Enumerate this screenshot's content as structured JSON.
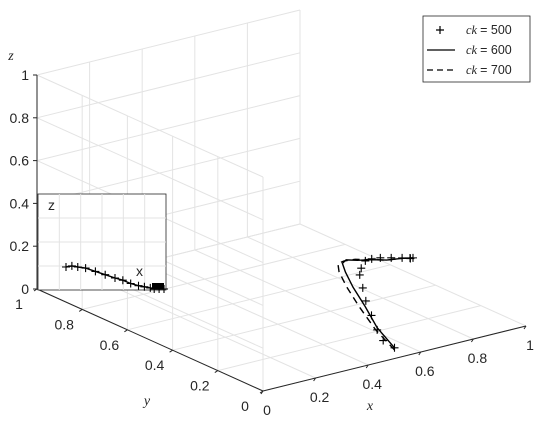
{
  "chart_data": {
    "type": "line",
    "projection": "3d",
    "xlabel": "x",
    "ylabel": "y",
    "zlabel": "z",
    "xlim": [
      0,
      1
    ],
    "ylim": [
      0,
      1
    ],
    "zlim": [
      0,
      1
    ],
    "x_ticks": [
      "0",
      "0.2",
      "0.4",
      "0.6",
      "0.8",
      "1"
    ],
    "y_ticks": [
      "0",
      "0.2",
      "0.4",
      "0.6",
      "0.8",
      "1"
    ],
    "z_ticks": [
      "0",
      "0.2",
      "0.4",
      "0.6",
      "0.8",
      "1"
    ],
    "grid": true,
    "legend_position": "top-right",
    "series": [
      {
        "name": "ck = 500",
        "name_symbol": "ck",
        "name_value": "= 500",
        "style": "plus-markers",
        "x": [
          0.5,
          0.5,
          0.52,
          0.55,
          0.58,
          0.62,
          0.66,
          0.7,
          0.75,
          0.8,
          0.85,
          0.9,
          0.95,
          0.98,
          0.99,
          1.0
        ],
        "y": [
          0.0,
          0.05,
          0.1,
          0.16,
          0.22,
          0.28,
          0.34,
          0.38,
          0.42,
          0.45,
          0.47,
          0.48,
          0.49,
          0.49,
          0.5,
          0.5
        ],
        "z": [
          0.05,
          0.06,
          0.08,
          0.11,
          0.14,
          0.16,
          0.18,
          0.18,
          0.18,
          0.16,
          0.14,
          0.12,
          0.1,
          0.09,
          0.08,
          0.08
        ]
      },
      {
        "name": "ck = 600",
        "name_symbol": "ck",
        "name_value": "= 600",
        "style": "solid",
        "x": [
          0.5,
          0.52,
          0.56,
          0.6,
          0.64,
          0.68,
          0.72,
          0.78,
          0.84,
          0.9,
          0.96,
          1.0
        ],
        "y": [
          0.0,
          0.1,
          0.2,
          0.3,
          0.38,
          0.44,
          0.47,
          0.49,
          0.5,
          0.5,
          0.5,
          0.5
        ],
        "z": [
          0.05,
          0.09,
          0.13,
          0.16,
          0.18,
          0.18,
          0.17,
          0.14,
          0.12,
          0.1,
          0.09,
          0.08
        ]
      },
      {
        "name": "ck = 700",
        "name_symbol": "ck",
        "name_value": "= 700",
        "style": "dashed",
        "x": [
          0.5,
          0.53,
          0.57,
          0.61,
          0.65,
          0.68,
          0.72,
          0.78,
          0.84,
          0.9,
          0.96,
          1.0
        ],
        "y": [
          0.0,
          0.12,
          0.24,
          0.34,
          0.42,
          0.46,
          0.48,
          0.5,
          0.5,
          0.5,
          0.5,
          0.5
        ],
        "z": [
          0.04,
          0.07,
          0.11,
          0.14,
          0.16,
          0.17,
          0.16,
          0.14,
          0.12,
          0.1,
          0.09,
          0.08
        ]
      }
    ],
    "inset": {
      "x_axis_label": "x",
      "z_axis_label": "z",
      "x": [
        0.0,
        0.06,
        0.12,
        0.2,
        0.3,
        0.4,
        0.5,
        0.58,
        0.66,
        0.74,
        0.8,
        0.86,
        0.9,
        0.95,
        1.0
      ],
      "z": [
        0.1,
        0.105,
        0.1,
        0.095,
        0.08,
        0.065,
        0.05,
        0.04,
        0.025,
        0.015,
        0.01,
        0.005,
        0.0,
        0.0,
        0.0
      ]
    }
  }
}
